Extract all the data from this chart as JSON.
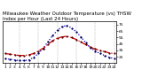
{
  "title": "Milwaukee Weather Outdoor Temperature (vs) THSW Index per Hour (Last 24 Hours)",
  "background_color": "#ffffff",
  "grid_color": "#b0b0b0",
  "hours": [
    1,
    2,
    3,
    4,
    5,
    6,
    7,
    8,
    9,
    10,
    11,
    12,
    13,
    14,
    15,
    16,
    17,
    18,
    19,
    20,
    21,
    22,
    23,
    24
  ],
  "temp_outdoor": [
    30,
    29,
    28,
    27,
    27,
    28,
    30,
    34,
    38,
    44,
    50,
    54,
    56,
    57,
    55,
    52,
    48,
    44,
    40,
    37,
    35,
    33,
    31,
    30
  ],
  "thsw_index": [
    22,
    21,
    20,
    19,
    19,
    20,
    24,
    30,
    38,
    48,
    58,
    66,
    72,
    74,
    70,
    64,
    56,
    47,
    39,
    34,
    30,
    27,
    24,
    22
  ],
  "temp_color": "#cc0000",
  "thsw_color": "#0000cc",
  "ylim": [
    15,
    80
  ],
  "yticks": [
    25,
    35,
    45,
    55,
    65,
    75
  ],
  "ytick_labels": [
    "25",
    "35",
    "45",
    "55",
    "65",
    "75"
  ],
  "grid_hours": [
    4,
    8,
    12,
    16,
    20,
    24
  ],
  "title_fontsize": 4.0,
  "tick_fontsize": 3.2,
  "linewidth": 0.9,
  "dot_size": 1.2
}
